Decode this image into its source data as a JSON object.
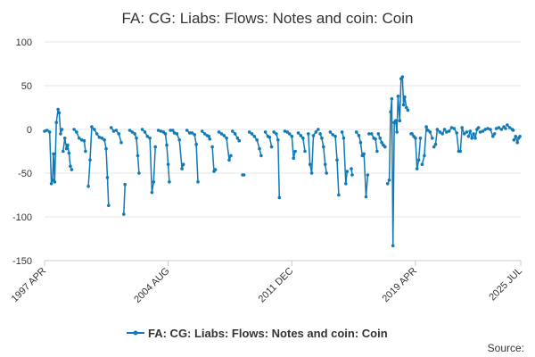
{
  "chart_data": {
    "type": "line",
    "title": "FA: CG: Liabs: Flows: Notes and coin: Coin",
    "xlabel": "",
    "ylabel": "",
    "ylim": [
      -150,
      100
    ],
    "yticks": [
      100,
      50,
      0,
      -50,
      -100,
      -150
    ],
    "xlim": [
      1997.25,
      2025.5
    ],
    "x_tick_labels": [
      {
        "label": "1997 APR",
        "value": 1997.25
      },
      {
        "label": "2004 AUG",
        "value": 2004.58
      },
      {
        "label": "2011 DEC",
        "value": 2011.92
      },
      {
        "label": "2019 APR",
        "value": 2019.25
      },
      {
        "label": "2025 JUL",
        "value": 2025.5
      }
    ],
    "grid": true,
    "legend": "bottom-center",
    "source_label": "Source:",
    "colors": {
      "series": "#0e7ab8",
      "grid": "#e6e6e6",
      "axis": "#cccccc",
      "text": "#333333"
    },
    "series": [
      {
        "name": "FA: CG: Liabs: Flows: Notes and coin: Coin",
        "color": "#0e7ab8",
        "segments": [
          [
            [
              1997.25,
              -2
            ],
            [
              1997.4,
              -1
            ],
            [
              1997.55,
              -3
            ],
            [
              1997.65,
              -62
            ],
            [
              1997.72,
              -58
            ],
            [
              1997.78,
              -28
            ],
            [
              1997.85,
              -60
            ],
            [
              1997.95,
              8
            ],
            [
              1998.05,
              23
            ],
            [
              1998.12,
              19
            ],
            [
              1998.2,
              -5
            ],
            [
              1998.28,
              0
            ]
          ],
          [
            [
              1998.35,
              -25
            ],
            [
              1998.45,
              -10
            ],
            [
              1998.55,
              -22
            ],
            [
              1998.62,
              -18
            ],
            [
              1998.7,
              -27
            ],
            [
              1998.78,
              -42
            ],
            [
              1998.86,
              -46
            ]
          ],
          [
            [
              1999.0,
              0
            ],
            [
              1999.15,
              -3
            ],
            [
              1999.3,
              -10
            ],
            [
              1999.45,
              -12
            ],
            [
              1999.6,
              -13
            ],
            [
              1999.68,
              -25
            ]
          ],
          [
            [
              1999.85,
              -65
            ],
            [
              1999.95,
              -35
            ],
            [
              2000.05,
              3
            ],
            [
              2000.2,
              0
            ],
            [
              2000.35,
              -5
            ],
            [
              2000.5,
              -9
            ],
            [
              2000.65,
              -10
            ],
            [
              2000.8,
              -12
            ],
            [
              2000.9,
              -22
            ],
            [
              2000.98,
              -55
            ],
            [
              2001.05,
              -87
            ]
          ],
          [
            [
              2001.2,
              2
            ],
            [
              2001.35,
              -2
            ],
            [
              2001.5,
              -1
            ],
            [
              2001.65,
              -5
            ],
            [
              2001.8,
              -15
            ]
          ],
          [
            [
              2001.95,
              -97
            ],
            [
              2002.02,
              -63
            ]
          ],
          [
            [
              2002.3,
              -1
            ],
            [
              2002.45,
              -3
            ],
            [
              2002.6,
              -5
            ],
            [
              2002.7,
              -10
            ],
            [
              2002.78,
              -30
            ],
            [
              2002.85,
              -50
            ]
          ],
          [
            [
              2003.05,
              0
            ],
            [
              2003.2,
              -3
            ],
            [
              2003.35,
              -8
            ],
            [
              2003.5,
              -10
            ],
            [
              2003.62,
              -72
            ],
            [
              2003.72,
              -60
            ],
            [
              2003.82,
              -20
            ]
          ],
          [
            [
              2004.0,
              -1
            ],
            [
              2004.15,
              -2
            ],
            [
              2004.3,
              -3
            ],
            [
              2004.42,
              -5
            ],
            [
              2004.5,
              -18
            ],
            [
              2004.58,
              -40
            ],
            [
              2004.65,
              -60
            ]
          ],
          [
            [
              2004.85,
              -1
            ],
            [
              2004.95,
              -4
            ],
            [
              2005.1,
              -5
            ],
            [
              2005.25,
              -12
            ],
            [
              2005.4,
              -45
            ],
            [
              2005.48,
              -40
            ]
          ],
          [
            [
              2005.7,
              -1
            ],
            [
              2005.85,
              -4
            ],
            [
              2006.0,
              -4
            ],
            [
              2006.15,
              -6
            ],
            [
              2006.25,
              -17
            ],
            [
              2006.35,
              -60
            ]
          ],
          [
            [
              2006.6,
              -2
            ],
            [
              2006.75,
              -5
            ],
            [
              2006.9,
              -7
            ],
            [
              2007.0,
              -8
            ]
          ],
          [
            [
              2007.2,
              -20
            ],
            [
              2007.3,
              -48
            ],
            [
              2007.38,
              -46
            ]
          ],
          [
            [
              2007.6,
              -3
            ],
            [
              2007.75,
              -5
            ],
            [
              2007.9,
              -7
            ],
            [
              2008.05,
              -10
            ],
            [
              2008.2,
              -35
            ],
            [
              2008.3,
              -30
            ]
          ],
          [
            [
              2008.4,
              -2
            ],
            [
              2008.55,
              -5
            ],
            [
              2008.7,
              -10
            ],
            [
              2008.8,
              -13
            ]
          ],
          [
            [
              2009.0,
              -52
            ],
            [
              2009.08,
              -52
            ]
          ],
          [
            [
              2009.4,
              -3
            ],
            [
              2009.55,
              -5
            ],
            [
              2009.7,
              -8
            ],
            [
              2009.85,
              -12
            ],
            [
              2010.0,
              -22
            ],
            [
              2010.1,
              -30
            ]
          ],
          [
            [
              2010.35,
              -3
            ],
            [
              2010.5,
              -8
            ],
            [
              2010.6,
              -9
            ],
            [
              2010.72,
              -20
            ]
          ],
          [
            [
              2010.85,
              -3
            ],
            [
              2011.0,
              -5
            ],
            [
              2011.1,
              -12
            ],
            [
              2011.18,
              -78
            ]
          ],
          [
            [
              2011.5,
              -2
            ],
            [
              2011.65,
              -3
            ],
            [
              2011.78,
              -5
            ],
            [
              2011.92,
              -8
            ],
            [
              2012.02,
              -33
            ],
            [
              2012.12,
              -25
            ]
          ],
          [
            [
              2012.3,
              -4
            ],
            [
              2012.45,
              -7
            ],
            [
              2012.58,
              -10
            ],
            [
              2012.7,
              -25
            ]
          ],
          [
            [
              2012.9,
              -5
            ],
            [
              2013.0,
              -40
            ],
            [
              2013.1,
              -50
            ],
            [
              2013.2,
              -7
            ],
            [
              2013.35,
              -3
            ],
            [
              2013.48,
              0
            ]
          ],
          [
            [
              2013.6,
              -5
            ],
            [
              2013.7,
              -10
            ],
            [
              2013.8,
              -20
            ],
            [
              2013.9,
              -40
            ],
            [
              2013.98,
              -50
            ]
          ],
          [
            [
              2014.2,
              -3
            ],
            [
              2014.35,
              -6
            ],
            [
              2014.5,
              -8
            ],
            [
              2014.6,
              -35
            ],
            [
              2014.7,
              -75
            ]
          ],
          [
            [
              2014.9,
              -3
            ],
            [
              2015.0,
              -10
            ],
            [
              2015.12,
              -62
            ],
            [
              2015.2,
              -48
            ]
          ],
          [
            [
              2015.45,
              -45
            ],
            [
              2015.5,
              -52
            ]
          ],
          [
            [
              2015.75,
              -3
            ],
            [
              2015.9,
              -7
            ],
            [
              2016.0,
              -15
            ],
            [
              2016.1,
              -30
            ],
            [
              2016.2,
              -28
            ],
            [
              2016.32,
              -77
            ],
            [
              2016.42,
              -52
            ]
          ],
          [
            [
              2016.5,
              -5
            ],
            [
              2016.65,
              -5
            ],
            [
              2016.78,
              -10
            ],
            [
              2016.88,
              -11
            ],
            [
              2016.98,
              -25
            ]
          ],
          [
            [
              2017.05,
              -5
            ],
            [
              2017.15,
              -10
            ],
            [
              2017.25,
              -15
            ],
            [
              2017.35,
              -18
            ],
            [
              2017.45,
              -20
            ]
          ],
          [
            [
              2017.6,
              -62
            ],
            [
              2017.7,
              -58
            ],
            [
              2017.78,
              20
            ],
            [
              2017.85,
              35
            ],
            [
              2017.92,
              -133
            ],
            [
              2018.0,
              8
            ],
            [
              2018.08,
              10
            ],
            [
              2018.15,
              -3
            ],
            [
              2018.22,
              38
            ],
            [
              2018.32,
              10
            ],
            [
              2018.4,
              58
            ],
            [
              2018.48,
              60
            ],
            [
              2018.55,
              28
            ],
            [
              2018.62,
              37
            ],
            [
              2018.72,
              25
            ],
            [
              2018.8,
              22
            ]
          ],
          [
            [
              2019.05,
              -5
            ],
            [
              2019.15,
              -8
            ],
            [
              2019.25,
              -10
            ],
            [
              2019.35,
              -45
            ],
            [
              2019.45,
              -35
            ],
            [
              2019.55,
              -10
            ]
          ],
          [
            [
              2019.65,
              -40
            ],
            [
              2019.78,
              -30
            ],
            [
              2019.9,
              3
            ],
            [
              2020.0,
              -1
            ],
            [
              2020.12,
              -3
            ],
            [
              2020.25,
              -10
            ]
          ],
          [
            [
              2020.35,
              -20
            ],
            [
              2020.45,
              -17
            ],
            [
              2020.55,
              0
            ],
            [
              2020.7,
              -3
            ],
            [
              2020.85,
              -5
            ],
            [
              2020.98,
              0
            ]
          ],
          [
            [
              2021.1,
              -3
            ],
            [
              2021.25,
              -2
            ],
            [
              2021.4,
              2
            ],
            [
              2021.55,
              1
            ],
            [
              2021.7,
              -4
            ],
            [
              2021.82,
              -25
            ],
            [
              2021.92,
              -25
            ],
            [
              2022.02,
              2
            ],
            [
              2022.15,
              -5
            ],
            [
              2022.3,
              -3
            ]
          ],
          [
            [
              2022.4,
              -8
            ],
            [
              2022.5,
              -2
            ],
            [
              2022.6,
              -10
            ],
            [
              2022.7,
              -5
            ],
            [
              2022.8,
              -10
            ],
            [
              2022.9,
              0
            ],
            [
              2023.0,
              2
            ]
          ],
          [
            [
              2023.1,
              -3
            ],
            [
              2023.25,
              -2
            ],
            [
              2023.4,
              0
            ],
            [
              2023.55,
              1
            ],
            [
              2023.7,
              0
            ],
            [
              2023.85,
              -8
            ],
            [
              2023.95,
              -5
            ]
          ],
          [
            [
              2024.05,
              1
            ],
            [
              2024.2,
              2
            ],
            [
              2024.35,
              0
            ],
            [
              2024.5,
              3
            ],
            [
              2024.6,
              1
            ]
          ],
          [
            [
              2024.7,
              5
            ],
            [
              2024.85,
              2
            ],
            [
              2025.0,
              0
            ]
          ],
          [
            [
              2025.1,
              -12
            ],
            [
              2025.2,
              -8
            ],
            [
              2025.3,
              -15
            ],
            [
              2025.38,
              -10
            ],
            [
              2025.45,
              -8
            ]
          ]
        ],
        "points": [
          [
            2004.72,
            -1
          ],
          [
            2007.05,
            -11
          ],
          [
            2019.0,
            -5
          ],
          [
            2025.05,
            -1
          ]
        ]
      }
    ]
  }
}
